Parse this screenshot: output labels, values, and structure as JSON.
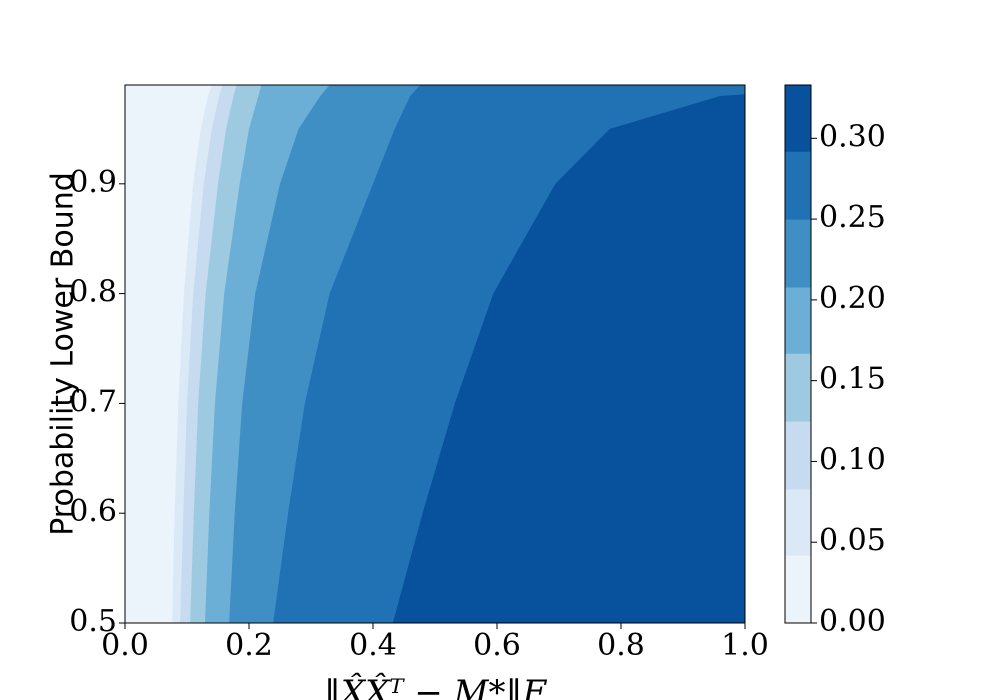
{
  "chart_data": {
    "type": "contourf",
    "xlabel": "‖X̂X̂ᵀ − M*‖F",
    "ylabel": "Probability Lower Bound",
    "xlim": [
      0,
      1
    ],
    "ylim": [
      0.5,
      0.99
    ],
    "xticks": [
      {
        "value": 0,
        "label": "0.0"
      },
      0.2,
      0.4,
      0.6,
      0.8,
      {
        "value": 1,
        "label": "1.0"
      }
    ],
    "yticks": [
      0.5,
      0.6,
      0.7,
      0.8,
      0.9
    ],
    "levels": [
      0,
      0.042,
      0.083,
      0.125,
      0.167,
      0.208,
      0.25,
      0.292,
      0.333
    ],
    "colors": [
      "#ebf3fb",
      "#dbe9f6",
      "#c6dbef",
      "#9ecae1",
      "#6baed6",
      "#3f8fc5",
      "#2171b5",
      "#08519c"
    ],
    "contour_y": [
      0.5,
      0.6,
      0.7,
      0.8,
      0.9,
      0.95,
      0.98,
      0.99
    ],
    "contour_x": [
      [
        0.076,
        0.08,
        0.086,
        0.095,
        0.11,
        0.122,
        0.134,
        0.14
      ],
      [
        0.089,
        0.094,
        0.1,
        0.11,
        0.127,
        0.14,
        0.152,
        0.157
      ],
      [
        0.105,
        0.111,
        0.118,
        0.13,
        0.15,
        0.163,
        0.175,
        0.18
      ],
      [
        0.129,
        0.136,
        0.145,
        0.16,
        0.185,
        0.2,
        0.215,
        0.22
      ],
      [
        0.168,
        0.177,
        0.189,
        0.21,
        0.25,
        0.28,
        0.315,
        0.33
      ],
      [
        0.239,
        0.263,
        0.29,
        0.33,
        0.4,
        0.435,
        0.46,
        0.476
      ],
      [
        0.432,
        0.48,
        0.532,
        0.594,
        0.694,
        0.782,
        0.96,
        1.23
      ]
    ],
    "clim": [
      0,
      0.333
    ],
    "cticks": [
      {
        "value": 0,
        "label": "0.00"
      },
      0.05,
      {
        "value": 0.1,
        "label": "0.10"
      },
      0.15,
      {
        "value": 0.2,
        "label": "0.20"
      },
      0.25,
      {
        "value": 0.3,
        "label": "0.30"
      }
    ]
  }
}
